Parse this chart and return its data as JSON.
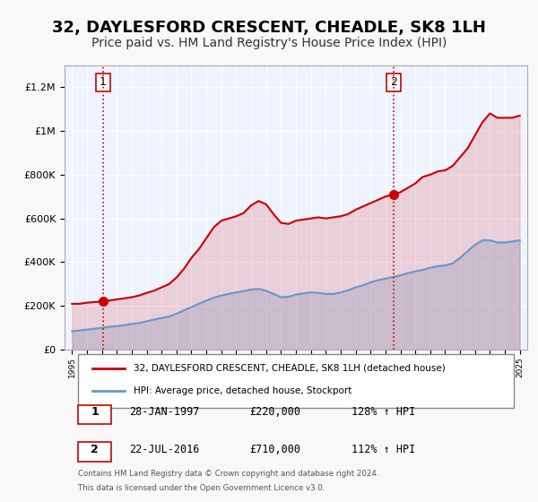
{
  "title": "32, DAYLESFORD CRESCENT, CHEADLE, SK8 1LH",
  "subtitle": "Price paid vs. HM Land Registry's House Price Index (HPI)",
  "title_fontsize": 13,
  "subtitle_fontsize": 10,
  "legend_line1": "32, DAYLESFORD CRESCENT, CHEADLE, SK8 1LH (detached house)",
  "legend_line2": "HPI: Average price, detached house, Stockport",
  "footnote1": "Contains HM Land Registry data © Crown copyright and database right 2024.",
  "footnote2": "This data is licensed under the Open Government Licence v3.0.",
  "marker1_date": "28-JAN-1997",
  "marker1_price": "£220,000",
  "marker1_hpi": "128% ↑ HPI",
  "marker2_date": "22-JUL-2016",
  "marker2_price": "£710,000",
  "marker2_hpi": "112% ↑ HPI",
  "xlim": [
    1994.5,
    2025.5
  ],
  "ylim": [
    0,
    1300000
  ],
  "red_color": "#cc0000",
  "blue_color": "#6699cc",
  "bg_color": "#ddeeff",
  "plot_bg": "#eef4ff",
  "grid_color": "#ffffff",
  "marker1_x": 1997.08,
  "marker1_y": 220000,
  "marker2_x": 2016.55,
  "marker2_y": 710000,
  "red_line": {
    "x": [
      1995.0,
      1995.5,
      1996.0,
      1996.5,
      1997.08,
      1997.5,
      1998.0,
      1998.5,
      1999.0,
      1999.5,
      2000.0,
      2000.5,
      2001.0,
      2001.5,
      2002.0,
      2002.5,
      2003.0,
      2003.5,
      2004.0,
      2004.5,
      2005.0,
      2005.5,
      2006.0,
      2006.5,
      2007.0,
      2007.5,
      2008.0,
      2008.5,
      2009.0,
      2009.5,
      2010.0,
      2010.5,
      2011.0,
      2011.5,
      2012.0,
      2012.5,
      2013.0,
      2013.5,
      2014.0,
      2014.5,
      2015.0,
      2015.5,
      2016.0,
      2016.55,
      2017.0,
      2017.5,
      2018.0,
      2018.5,
      2019.0,
      2019.5,
      2020.0,
      2020.5,
      2021.0,
      2021.5,
      2022.0,
      2022.5,
      2023.0,
      2023.5,
      2024.0,
      2024.5,
      2025.0
    ],
    "y": [
      210000,
      210000,
      215000,
      218000,
      220000,
      225000,
      230000,
      235000,
      240000,
      248000,
      260000,
      270000,
      285000,
      300000,
      330000,
      370000,
      420000,
      460000,
      510000,
      560000,
      590000,
      600000,
      610000,
      625000,
      660000,
      680000,
      665000,
      620000,
      580000,
      575000,
      590000,
      595000,
      600000,
      605000,
      600000,
      605000,
      610000,
      620000,
      640000,
      655000,
      670000,
      685000,
      700000,
      710000,
      720000,
      740000,
      760000,
      790000,
      800000,
      815000,
      820000,
      840000,
      880000,
      920000,
      980000,
      1040000,
      1080000,
      1060000,
      1060000,
      1060000,
      1070000
    ]
  },
  "blue_line": {
    "x": [
      1995.0,
      1995.5,
      1996.0,
      1996.5,
      1997.0,
      1997.5,
      1998.0,
      1998.5,
      1999.0,
      1999.5,
      2000.0,
      2000.5,
      2001.0,
      2001.5,
      2002.0,
      2002.5,
      2003.0,
      2003.5,
      2004.0,
      2004.5,
      2005.0,
      2005.5,
      2006.0,
      2006.5,
      2007.0,
      2007.5,
      2008.0,
      2008.5,
      2009.0,
      2009.5,
      2010.0,
      2010.5,
      2011.0,
      2011.5,
      2012.0,
      2012.5,
      2013.0,
      2013.5,
      2014.0,
      2014.5,
      2015.0,
      2015.5,
      2016.0,
      2016.5,
      2017.0,
      2017.5,
      2018.0,
      2018.5,
      2019.0,
      2019.5,
      2020.0,
      2020.5,
      2021.0,
      2021.5,
      2022.0,
      2022.5,
      2023.0,
      2023.5,
      2024.0,
      2024.5,
      2025.0
    ],
    "y": [
      85000,
      88000,
      92000,
      96000,
      100000,
      105000,
      108000,
      112000,
      118000,
      122000,
      130000,
      138000,
      145000,
      152000,
      165000,
      180000,
      195000,
      210000,
      225000,
      238000,
      248000,
      255000,
      262000,
      268000,
      275000,
      278000,
      270000,
      255000,
      240000,
      242000,
      252000,
      258000,
      262000,
      260000,
      255000,
      255000,
      262000,
      272000,
      285000,
      295000,
      308000,
      318000,
      325000,
      332000,
      340000,
      350000,
      358000,
      365000,
      375000,
      382000,
      385000,
      395000,
      420000,
      450000,
      480000,
      500000,
      500000,
      490000,
      490000,
      495000,
      500000
    ]
  }
}
